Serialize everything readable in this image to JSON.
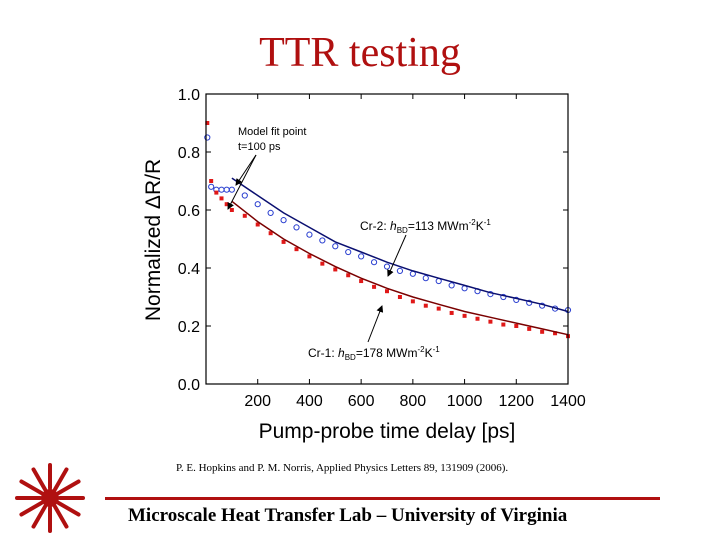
{
  "slide": {
    "title": "TTR testing",
    "citation": "P. E. Hopkins and P. M. Norris, Applied Physics Letters 89, 131909 (2006).",
    "footer": "Microscale Heat Transfer Lab – University of Virginia",
    "accent_color": "#b01010",
    "logo_icon": "laser-starburst-icon"
  },
  "chart_data": {
    "type": "scatter",
    "title": "",
    "xlabel": "Pump-probe time delay [ps]",
    "ylabel": "Normalized ΔR/R",
    "xlim": [
      0,
      1400
    ],
    "ylim": [
      0,
      1.0
    ],
    "xticks": [
      "200",
      "400",
      "600",
      "800",
      "1000",
      "1200",
      "1400"
    ],
    "yticks": [
      "0.0",
      "0.2",
      "0.4",
      "0.6",
      "0.8",
      "1.0"
    ],
    "series": [
      {
        "name": "Cr-2",
        "color": "#2a3fd0",
        "marker": "circle",
        "x": [
          5,
          20,
          40,
          60,
          80,
          100,
          150,
          200,
          250,
          300,
          350,
          400,
          450,
          500,
          550,
          600,
          650,
          700,
          750,
          800,
          850,
          900,
          950,
          1000,
          1050,
          1100,
          1150,
          1200,
          1250,
          1300,
          1350,
          1400
        ],
        "y": [
          0.85,
          0.68,
          0.67,
          0.67,
          0.67,
          0.67,
          0.65,
          0.62,
          0.59,
          0.565,
          0.54,
          0.515,
          0.495,
          0.475,
          0.455,
          0.44,
          0.42,
          0.405,
          0.39,
          0.38,
          0.365,
          0.355,
          0.34,
          0.33,
          0.32,
          0.31,
          0.3,
          0.29,
          0.28,
          0.27,
          0.26,
          0.255
        ]
      },
      {
        "name": "Cr-1",
        "color": "#e01818",
        "marker": "square",
        "x": [
          5,
          20,
          40,
          60,
          80,
          100,
          150,
          200,
          250,
          300,
          350,
          400,
          450,
          500,
          550,
          600,
          650,
          700,
          750,
          800,
          850,
          900,
          950,
          1000,
          1050,
          1100,
          1150,
          1200,
          1250,
          1300,
          1350,
          1400
        ],
        "y": [
          0.9,
          0.7,
          0.66,
          0.64,
          0.62,
          0.6,
          0.58,
          0.55,
          0.52,
          0.49,
          0.465,
          0.44,
          0.415,
          0.395,
          0.375,
          0.355,
          0.335,
          0.32,
          0.3,
          0.285,
          0.27,
          0.26,
          0.245,
          0.235,
          0.225,
          0.215,
          0.205,
          0.2,
          0.19,
          0.18,
          0.175,
          0.165
        ]
      }
    ],
    "fits": [
      {
        "name": "Cr-2 fit",
        "color": "#0a0f70",
        "x": [
          100,
          200,
          300,
          400,
          500,
          600,
          700,
          800,
          900,
          1000,
          1100,
          1200,
          1300,
          1400
        ],
        "y": [
          0.71,
          0.65,
          0.59,
          0.54,
          0.49,
          0.455,
          0.42,
          0.39,
          0.365,
          0.34,
          0.315,
          0.295,
          0.275,
          0.25
        ]
      },
      {
        "name": "Cr-1 fit",
        "color": "#7a0000",
        "x": [
          100,
          200,
          300,
          400,
          500,
          600,
          700,
          800,
          900,
          1000,
          1100,
          1200,
          1300,
          1400
        ],
        "y": [
          0.63,
          0.56,
          0.5,
          0.45,
          0.405,
          0.365,
          0.33,
          0.3,
          0.275,
          0.25,
          0.23,
          0.21,
          0.19,
          0.17
        ]
      }
    ],
    "annotations": {
      "model_fit_line1": "Model fit point",
      "model_fit_line2": "t=100 ps",
      "cr2_prefix": "Cr-2: ",
      "cr2_h": "h",
      "cr2_h_sub": "BD",
      "cr2_value": "=113 MWm",
      "cr2_exp1": "-2",
      "cr2_unit": "K",
      "cr2_exp2": "-1",
      "cr1_prefix": "Cr-1: ",
      "cr1_h": "h",
      "cr1_h_sub": "BD",
      "cr1_value": "=178 MWm",
      "cr1_exp1": "-2",
      "cr1_unit": "K",
      "cr1_exp2": "-1"
    }
  }
}
